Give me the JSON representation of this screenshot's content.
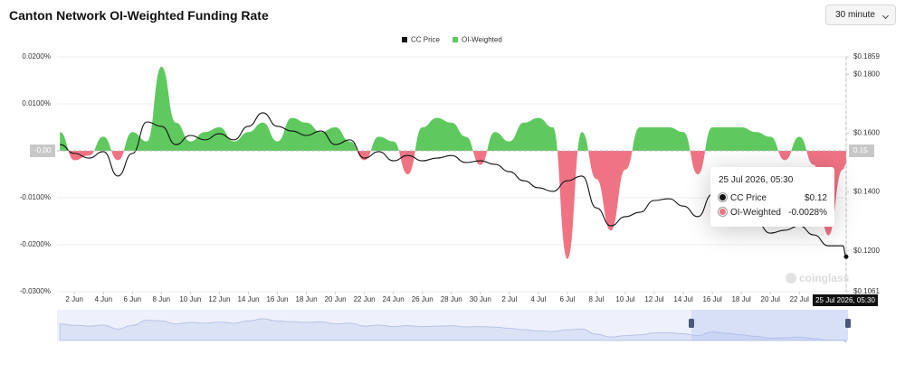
{
  "chart_data": {
    "type": "area-line",
    "title": "Canton Network OI-Weighted Funding Rate",
    "interval_button": "30 minute",
    "watermark": "coinglass",
    "x": [
      1,
      2,
      3,
      4,
      5,
      6,
      7,
      8,
      9,
      10,
      11,
      12,
      13,
      14,
      15,
      16,
      17,
      18,
      19,
      20,
      21,
      22,
      23,
      24,
      25,
      26,
      27,
      28,
      29,
      30,
      31,
      32,
      33,
      34,
      35,
      36,
      37,
      38,
      39,
      40,
      41,
      42,
      43,
      44,
      45,
      46,
      47,
      48,
      49,
      50,
      51,
      52,
      53,
      54,
      55,
      55.23
    ],
    "xlim": [
      0.8,
      55.23
    ],
    "xticks": [
      {
        "value": 2,
        "label": "2 Jun"
      },
      {
        "value": 4,
        "label": "4 Jun"
      },
      {
        "value": 6,
        "label": "6 Jun"
      },
      {
        "value": 8,
        "label": "8 Jun"
      },
      {
        "value": 10,
        "label": "10 Jun"
      },
      {
        "value": 12,
        "label": "12 Jun"
      },
      {
        "value": 14,
        "label": "14 Jun"
      },
      {
        "value": 16,
        "label": "16 Jun"
      },
      {
        "value": 18,
        "label": "18 Jun"
      },
      {
        "value": 20,
        "label": "20 Jun"
      },
      {
        "value": 22,
        "label": "22 Jun"
      },
      {
        "value": 24,
        "label": "24 Jun"
      },
      {
        "value": 26,
        "label": "26 Jun"
      },
      {
        "value": 28,
        "label": "28 Jun"
      },
      {
        "value": 30,
        "label": "30 Jun"
      },
      {
        "value": 32,
        "label": "2 Jul"
      },
      {
        "value": 34,
        "label": "4 Jul"
      },
      {
        "value": 36,
        "label": "6 Jul"
      },
      {
        "value": 38,
        "label": "8 Jul"
      },
      {
        "value": 40,
        "label": "10 Jul"
      },
      {
        "value": 42,
        "label": "12 Jul"
      },
      {
        "value": 44,
        "label": "14 Jul"
      },
      {
        "value": 46,
        "label": "16 Jul"
      },
      {
        "value": 48,
        "label": "18 Jul"
      },
      {
        "value": 50,
        "label": "20 Jul"
      },
      {
        "value": 52,
        "label": "22 Jul"
      }
    ],
    "ylim": [
      -0.03,
      0.02
    ],
    "yticks": [
      {
        "value": 0.02,
        "label": "0.0200%"
      },
      {
        "value": 0.01,
        "label": "0.0100%"
      },
      {
        "value": -0.01,
        "label": "-0.0100%"
      },
      {
        "value": -0.02,
        "label": "-0.0200%"
      },
      {
        "value": -0.03,
        "label": "-0.0300%"
      }
    ],
    "y2lim": [
      0.1061,
      0.1859
    ],
    "y2ticks": [
      {
        "value": 0.1859,
        "label": "$0.1859"
      },
      {
        "value": 0.18,
        "label": "$0.1800"
      },
      {
        "value": 0.16,
        "label": "$0.1600"
      },
      {
        "value": 0.14,
        "label": "$0.1400"
      },
      {
        "value": 0.12,
        "label": "$0.1200"
      },
      {
        "value": 0.1061,
        "label": "$0.1061"
      }
    ],
    "grid": true,
    "legend": "top",
    "series": [
      {
        "name": "CC Price",
        "color": "#111111",
        "axis": "y2",
        "values": [
          0.1561,
          0.1531,
          0.1515,
          0.1537,
          0.1454,
          0.1531,
          0.1638,
          0.1623,
          0.1561,
          0.1592,
          0.1577,
          0.1598,
          0.1577,
          0.1623,
          0.1669,
          0.1623,
          0.1607,
          0.1592,
          0.1607,
          0.1561,
          0.1577,
          0.1515,
          0.1537,
          0.1506,
          0.1524,
          0.1506,
          0.1515,
          0.1524,
          0.15,
          0.1506,
          0.1494,
          0.1469,
          0.1438,
          0.1414,
          0.1402,
          0.1438,
          0.1454,
          0.1346,
          0.1285,
          0.1316,
          0.1331,
          0.1371,
          0.1377,
          0.1352,
          0.1316,
          0.1392,
          0.1362,
          0.1331,
          0.13,
          0.126,
          0.127,
          0.1285,
          0.1254,
          0.1217,
          0.1217,
          0.118
        ]
      },
      {
        "name": "OI-Weighted",
        "color": "#5fc95f",
        "negative_color": "#f07384",
        "values": [
          0.004,
          -0.002,
          -0.001,
          0.003,
          -0.002,
          0.004,
          0.002,
          0.0179,
          0.006,
          0.002,
          0.004,
          0.005,
          0.002,
          0.004,
          0.006,
          0.002,
          0.007,
          0.006,
          0.004,
          0.005,
          0.002,
          -0.002,
          0.003,
          0.002,
          -0.005,
          0.005,
          0.007,
          0.006,
          0.003,
          -0.003,
          0.004,
          0.002,
          0.006,
          0.007,
          0.005,
          -0.023,
          0.004,
          -0.006,
          -0.017,
          -0.004,
          0.005,
          0.005,
          0.005,
          0.004,
          -0.005,
          0.005,
          0.005,
          0.005,
          0.004,
          0.003,
          -0.002,
          0.003,
          -0.003,
          -0.018,
          -0.004,
          -0.0028
        ]
      }
    ],
    "crosshair": {
      "y_label": "-0.00",
      "y2_label": "0.15",
      "x_label": "25 Jul 2026, 05:30"
    },
    "tooltip": {
      "title": "25 Jul 2026, 05:30",
      "rows": [
        {
          "name": "CC Price",
          "value": "$0.12"
        },
        {
          "name": "OI-Weighted",
          "value": "-0.0028%"
        }
      ]
    }
  }
}
